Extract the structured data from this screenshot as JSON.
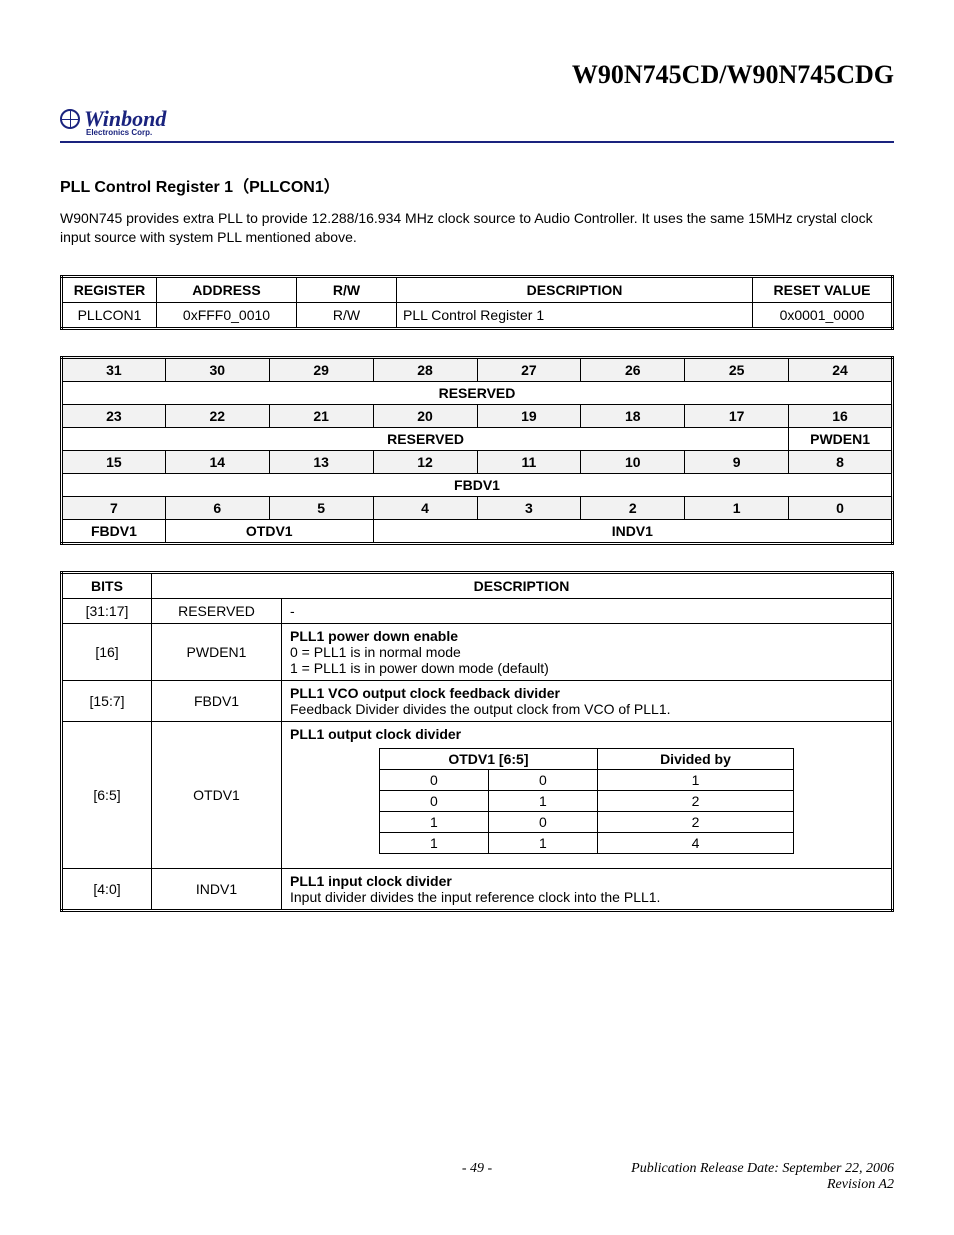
{
  "doc_title": "W90N745CD/W90N745CDG",
  "logo": {
    "brand": "Winbond",
    "sub": "Electronics Corp."
  },
  "section_title": "PLL Control Register 1（PLLCON1）",
  "intro": "W90N745 provides extra PLL to provide 12.288/16.934 MHz clock source to Audio Controller. It uses the same 15MHz crystal clock input source with system PLL mentioned above.",
  "reg_table": {
    "headers": [
      "REGISTER",
      "ADDRESS",
      "R/W",
      "DESCRIPTION",
      "RESET VALUE"
    ],
    "row": [
      "PLLCON1",
      "0xFFF0_0010",
      "R/W",
      "PLL Control Register 1",
      "0x0001_0000"
    ]
  },
  "bitmap": {
    "rows": [
      {
        "nums": [
          "31",
          "30",
          "29",
          "28",
          "27",
          "26",
          "25",
          "24"
        ],
        "fields": [
          {
            "label": "RESERVED",
            "span": 8
          }
        ]
      },
      {
        "nums": [
          "23",
          "22",
          "21",
          "20",
          "19",
          "18",
          "17",
          "16"
        ],
        "fields": [
          {
            "label": "RESERVED",
            "span": 7
          },
          {
            "label": "PWDEN1",
            "span": 1
          }
        ]
      },
      {
        "nums": [
          "15",
          "14",
          "13",
          "12",
          "11",
          "10",
          "9",
          "8"
        ],
        "fields": [
          {
            "label": "FBDV1",
            "span": 8
          }
        ]
      },
      {
        "nums": [
          "7",
          "6",
          "5",
          "4",
          "3",
          "2",
          "1",
          "0"
        ],
        "fields": [
          {
            "label": "FBDV1",
            "span": 1
          },
          {
            "label": "OTDV1",
            "span": 2
          },
          {
            "label": "INDV1",
            "span": 5
          }
        ]
      }
    ]
  },
  "bits_table": {
    "headers": [
      "BITS",
      "DESCRIPTION"
    ],
    "rows": [
      {
        "bits": "[31:17]",
        "name": "RESERVED",
        "desc_html": "-"
      },
      {
        "bits": "[16]",
        "name": "PWDEN1",
        "desc_lines": [
          {
            "bold": true,
            "text": "PLL1 power down enable"
          },
          {
            "bold": false,
            "text": "0 = PLL1 is in normal mode"
          },
          {
            "bold": false,
            "text": "1 = PLL1 is in power down mode (default)"
          }
        ]
      },
      {
        "bits": "[15:7]",
        "name": "FBDV1",
        "desc_lines": [
          {
            "bold": true,
            "text": "PLL1 VCO output clock feedback divider"
          },
          {
            "bold": false,
            "text": "Feedback Divider divides the output clock from VCO of PLL1."
          }
        ]
      },
      {
        "bits": "[6:5]",
        "name": "OTDV1",
        "desc_title": "PLL1 output clock divider",
        "inner_headers": [
          "OTDV1 [6:5]",
          "Divided by"
        ],
        "inner_rows": [
          [
            "0",
            "0",
            "1"
          ],
          [
            "0",
            "1",
            "2"
          ],
          [
            "1",
            "0",
            "2"
          ],
          [
            "1",
            "1",
            "4"
          ]
        ]
      },
      {
        "bits": "[4:0]",
        "name": "INDV1",
        "desc_lines": [
          {
            "bold": true,
            "text": "PLL1 input clock divider"
          },
          {
            "bold": false,
            "text": "Input divider divides the input reference clock into the PLL1."
          }
        ]
      }
    ]
  },
  "footer": {
    "page": "- 49 -",
    "pub": "Publication Release Date: September 22, 2006",
    "rev": "Revision A2"
  },
  "colors": {
    "accent": "#1a237e",
    "bitnum_bg": "#f2f2f2"
  }
}
